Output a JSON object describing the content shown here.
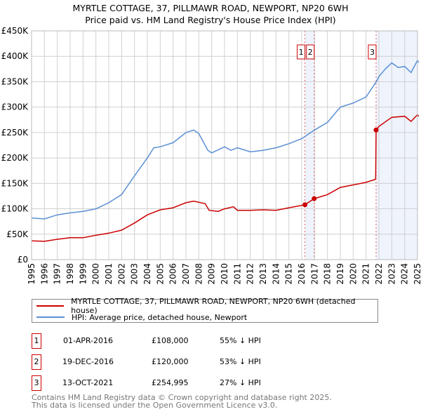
{
  "chart_data": {
    "type": "line",
    "title": "MYRTLE COTTAGE, 37, PILLMAWR ROAD, NEWPORT, NP20 6WH",
    "subtitle": "Price paid vs. HM Land Registry's House Price Index (HPI)",
    "ylim": [
      0,
      450000
    ],
    "xlim": [
      1995,
      2025.1
    ],
    "yticks": [
      {
        "v": 0,
        "label": "£0"
      },
      {
        "v": 50000,
        "label": "£50K"
      },
      {
        "v": 100000,
        "label": "£100K"
      },
      {
        "v": 150000,
        "label": "£150K"
      },
      {
        "v": 200000,
        "label": "£200K"
      },
      {
        "v": 250000,
        "label": "£250K"
      },
      {
        "v": 300000,
        "label": "£300K"
      },
      {
        "v": 350000,
        "label": "£350K"
      },
      {
        "v": 400000,
        "label": "£400K"
      },
      {
        "v": 450000,
        "label": "£450K"
      }
    ],
    "xticks": [
      "1995",
      "1996",
      "1997",
      "1998",
      "1999",
      "2000",
      "2001",
      "2002",
      "2003",
      "2004",
      "2005",
      "2006",
      "2007",
      "2008",
      "2009",
      "2010",
      "2011",
      "2012",
      "2013",
      "2014",
      "2015",
      "2016",
      "2017",
      "2018",
      "2019",
      "2020",
      "2021",
      "2022",
      "2023",
      "2024",
      "2025"
    ],
    "colors": {
      "property": "#cc0000",
      "hpi": "#5b8fd4",
      "shade": "#eef3fc",
      "marker_line": "#e06060"
    },
    "series": [
      {
        "name": "MYRTLE COTTAGE, 37, PILLMAWR ROAD, NEWPORT, NP20 6WH (detached house)",
        "color": "#cc0000",
        "x": [
          1995,
          1996,
          1997,
          1998,
          1999,
          2000,
          2001,
          2002,
          2003,
          2004,
          2005,
          2006,
          2007,
          2007.6,
          2008.5,
          2008.8,
          2009.5,
          2010,
          2010.7,
          2011,
          2012,
          2013,
          2014,
          2015,
          2016.25,
          2016.97,
          2018,
          2019,
          2020,
          2021,
          2021.75,
          2021.78,
          2022,
          2023,
          2024,
          2024.5,
          2025,
          2025.1
        ],
        "y": [
          37000,
          36000,
          40000,
          43000,
          43000,
          48000,
          52000,
          58000,
          72000,
          88000,
          98000,
          102000,
          112000,
          115000,
          110000,
          97000,
          95000,
          100000,
          104000,
          97000,
          97000,
          98000,
          97000,
          102000,
          108000,
          120000,
          128000,
          142000,
          147000,
          152000,
          158000,
          254995,
          262000,
          280000,
          282000,
          272000,
          285000,
          282000
        ]
      },
      {
        "name": "HPI: Average price, detached house, Newport",
        "color": "#5b8fd4",
        "x": [
          1995,
          1996,
          1997,
          1998,
          1999,
          2000,
          2001,
          2002,
          2003,
          2004,
          2004.5,
          2005,
          2006,
          2007,
          2007.6,
          2008,
          2008.7,
          2009,
          2010,
          2010.5,
          2011,
          2012,
          2013,
          2014,
          2015,
          2016,
          2017,
          2018,
          2019,
          2020,
          2021,
          2021.8,
          2022,
          2022.5,
          2023,
          2023.5,
          2024,
          2024.5,
          2025,
          2025.1
        ],
        "y": [
          82000,
          80000,
          88000,
          92000,
          95000,
          100000,
          112000,
          128000,
          165000,
          200000,
          220000,
          222000,
          230000,
          250000,
          255000,
          248000,
          215000,
          210000,
          222000,
          215000,
          220000,
          212000,
          215000,
          220000,
          228000,
          238000,
          255000,
          270000,
          300000,
          308000,
          320000,
          350000,
          360000,
          375000,
          387000,
          378000,
          380000,
          368000,
          392000,
          388000
        ]
      }
    ],
    "sales": [
      {
        "n": "1",
        "x": 2016.25,
        "date": "01-APR-2016",
        "price": "£108,000",
        "value": 108000,
        "hpi": "55% ↓ HPI"
      },
      {
        "n": "2",
        "x": 2016.97,
        "date": "19-DEC-2016",
        "price": "£120,000",
        "value": 120000,
        "hpi": "53% ↓ HPI"
      },
      {
        "n": "3",
        "x": 2021.78,
        "date": "13-OCT-2021",
        "price": "£254,995",
        "value": 254995,
        "hpi": "27% ↓ HPI"
      }
    ]
  },
  "footer": {
    "line1": "Contains HM Land Registry data © Crown copyright and database right 2025.",
    "line2": "This data is licensed under the Open Government Licence v3.0."
  }
}
